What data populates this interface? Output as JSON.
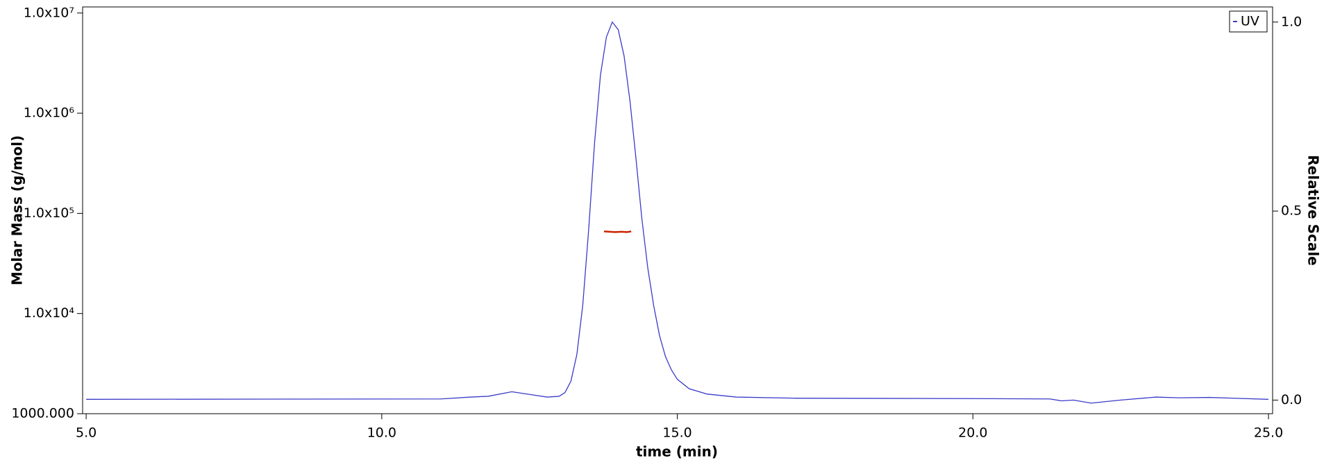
{
  "chart_data": {
    "type": "line",
    "x_label": "time (min)",
    "y_label": "Molar Mass (g/mol)",
    "y2_label": "Relative Scale",
    "xlim": [
      4.94,
      25.07
    ],
    "xticks": [
      {
        "value": 5,
        "label": "5.0"
      },
      {
        "value": 10,
        "label": "10.0"
      },
      {
        "value": 15,
        "label": "15.0"
      },
      {
        "value": 20,
        "label": "20.0"
      },
      {
        "value": 25,
        "label": "25.0"
      }
    ],
    "ylim": [
      1000,
      11500000
    ],
    "ylog": true,
    "yticks": [
      {
        "value": 1000,
        "label": "1000.000"
      },
      {
        "value": 10000,
        "label": "1.0x10⁴"
      },
      {
        "value": 100000,
        "label": "1.0x10⁵"
      },
      {
        "value": 1000000,
        "label": "1.0x10⁶"
      },
      {
        "value": 10000000,
        "label": "1.0x10⁷"
      }
    ],
    "y2lim": [
      -0.036,
      1.04
    ],
    "y2ticks": [
      {
        "value": 0,
        "label": "0.0"
      },
      0.5,
      {
        "value": 1,
        "label": "1.0"
      }
    ],
    "grid": false,
    "legend": "upper right",
    "series": [
      {
        "name": "UV",
        "color": "#3a3ac8",
        "axis": "y2",
        "x": [
          5.0,
          11.0,
          11.5,
          11.8,
          12.2,
          12.5,
          12.8,
          13.0,
          13.1,
          13.2,
          13.3,
          13.4,
          13.5,
          13.6,
          13.7,
          13.8,
          13.9,
          14.0,
          14.1,
          14.2,
          14.3,
          14.4,
          14.5,
          14.6,
          14.7,
          14.8,
          14.9,
          15.0,
          15.2,
          15.5,
          16.0,
          17.0,
          20.0,
          21.3,
          21.5,
          21.7,
          22.0,
          22.5,
          23.1,
          23.5,
          24.0,
          25.0
        ],
        "values": [
          0.002,
          0.003,
          0.008,
          0.01,
          0.022,
          0.015,
          0.008,
          0.01,
          0.02,
          0.05,
          0.12,
          0.25,
          0.45,
          0.68,
          0.86,
          0.96,
          1.0,
          0.98,
          0.91,
          0.79,
          0.64,
          0.48,
          0.35,
          0.25,
          0.17,
          0.115,
          0.08,
          0.055,
          0.03,
          0.016,
          0.008,
          0.005,
          0.004,
          0.003,
          -0.002,
          0.0,
          -0.008,
          0.0,
          0.008,
          0.006,
          0.007,
          0.002
        ]
      },
      {
        "color": "#cc2200",
        "axis": "y",
        "x": [
          13.76,
          13.85,
          13.95,
          14.05,
          14.15,
          14.22
        ],
        "values": [
          66000,
          65500,
          65000,
          65500,
          65000,
          66000
        ]
      }
    ]
  }
}
